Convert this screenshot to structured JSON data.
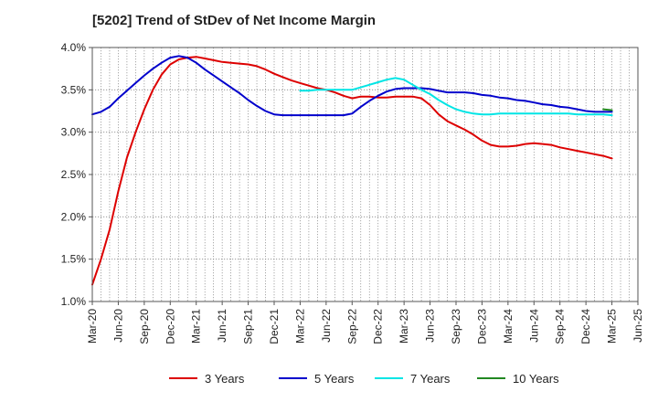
{
  "chart_data": {
    "type": "line",
    "title": "[5202]  Trend of StDev of Net Income Margin",
    "xlabel": "",
    "ylabel": "",
    "x_ticks": [
      "Mar-20",
      "Jun-20",
      "Sep-20",
      "Dec-20",
      "Mar-21",
      "Jun-21",
      "Sep-21",
      "Dec-21",
      "Mar-22",
      "Jun-22",
      "Sep-22",
      "Dec-22",
      "Mar-23",
      "Jun-23",
      "Sep-23",
      "Dec-23",
      "Mar-24",
      "Jun-24",
      "Sep-24",
      "Dec-24",
      "Mar-25",
      "Jun-25"
    ],
    "y_ticks": [
      "1.0%",
      "1.5%",
      "2.0%",
      "2.5%",
      "3.0%",
      "3.5%",
      "4.0%"
    ],
    "ylim": [
      1.0,
      4.0
    ],
    "y_unit": "%",
    "grid": true,
    "grid_style": "dotted",
    "legend_position": "bottom",
    "series": [
      {
        "name": "3 Years",
        "color": "#dd0000",
        "x": [
          "Mar-20",
          "Apr-20",
          "May-20",
          "Jun-20",
          "Jul-20",
          "Aug-20",
          "Sep-20",
          "Oct-20",
          "Nov-20",
          "Dec-20",
          "Jan-21",
          "Feb-21",
          "Mar-21",
          "Apr-21",
          "May-21",
          "Jun-21",
          "Jul-21",
          "Aug-21",
          "Sep-21",
          "Oct-21",
          "Nov-21",
          "Dec-21",
          "Jan-22",
          "Feb-22",
          "Mar-22",
          "Apr-22",
          "May-22",
          "Jun-22",
          "Jul-22",
          "Aug-22",
          "Sep-22",
          "Oct-22",
          "Nov-22",
          "Dec-22",
          "Jan-23",
          "Feb-23",
          "Mar-23",
          "Apr-23",
          "May-23",
          "Jun-23",
          "Jul-23",
          "Aug-23",
          "Sep-23",
          "Oct-23",
          "Nov-23",
          "Dec-23",
          "Jan-24",
          "Feb-24",
          "Mar-24",
          "Apr-24",
          "May-24",
          "Jun-24",
          "Jul-24",
          "Aug-24",
          "Sep-24",
          "Oct-24",
          "Nov-24",
          "Dec-24",
          "Jan-25",
          "Feb-25",
          "Mar-25"
        ],
        "values": [
          1.2,
          1.5,
          1.85,
          2.3,
          2.7,
          3.0,
          3.27,
          3.5,
          3.68,
          3.8,
          3.86,
          3.88,
          3.89,
          3.87,
          3.85,
          3.83,
          3.82,
          3.81,
          3.8,
          3.78,
          3.74,
          3.69,
          3.65,
          3.61,
          3.58,
          3.55,
          3.52,
          3.5,
          3.47,
          3.43,
          3.4,
          3.42,
          3.42,
          3.41,
          3.41,
          3.42,
          3.42,
          3.42,
          3.4,
          3.32,
          3.21,
          3.13,
          3.08,
          3.03,
          2.97,
          2.9,
          2.85,
          2.83,
          2.83,
          2.84,
          2.86,
          2.87,
          2.86,
          2.85,
          2.82,
          2.8,
          2.78,
          2.76,
          2.74,
          2.72,
          2.69
        ]
      },
      {
        "name": "5 Years",
        "color": "#0000cc",
        "x": [
          "Mar-20",
          "Apr-20",
          "May-20",
          "Jun-20",
          "Jul-20",
          "Aug-20",
          "Sep-20",
          "Oct-20",
          "Nov-20",
          "Dec-20",
          "Jan-21",
          "Feb-21",
          "Mar-21",
          "Apr-21",
          "May-21",
          "Jun-21",
          "Jul-21",
          "Aug-21",
          "Sep-21",
          "Oct-21",
          "Nov-21",
          "Dec-21",
          "Jan-22",
          "Feb-22",
          "Mar-22",
          "Apr-22",
          "May-22",
          "Jun-22",
          "Jul-22",
          "Aug-22",
          "Sep-22",
          "Oct-22",
          "Nov-22",
          "Dec-22",
          "Jan-23",
          "Feb-23",
          "Mar-23",
          "Apr-23",
          "May-23",
          "Jun-23",
          "Jul-23",
          "Aug-23",
          "Sep-23",
          "Oct-23",
          "Nov-23",
          "Dec-23",
          "Jan-24",
          "Feb-24",
          "Mar-24",
          "Apr-24",
          "May-24",
          "Jun-24",
          "Jul-24",
          "Aug-24",
          "Sep-24",
          "Oct-24",
          "Nov-24",
          "Dec-24",
          "Jan-25",
          "Feb-25",
          "Mar-25"
        ],
        "values": [
          3.21,
          3.24,
          3.3,
          3.4,
          3.49,
          3.58,
          3.67,
          3.75,
          3.82,
          3.88,
          3.9,
          3.88,
          3.82,
          3.74,
          3.67,
          3.6,
          3.53,
          3.46,
          3.38,
          3.31,
          3.25,
          3.21,
          3.2,
          3.2,
          3.2,
          3.2,
          3.2,
          3.2,
          3.2,
          3.2,
          3.22,
          3.3,
          3.37,
          3.43,
          3.48,
          3.51,
          3.52,
          3.52,
          3.52,
          3.51,
          3.49,
          3.47,
          3.47,
          3.47,
          3.46,
          3.44,
          3.43,
          3.41,
          3.4,
          3.38,
          3.37,
          3.35,
          3.33,
          3.32,
          3.3,
          3.29,
          3.27,
          3.25,
          3.24,
          3.24,
          3.24
        ]
      },
      {
        "name": "7 Years",
        "color": "#00e5e5",
        "x": [
          "Mar-22",
          "Apr-22",
          "May-22",
          "Jun-22",
          "Jul-22",
          "Aug-22",
          "Sep-22",
          "Oct-22",
          "Nov-22",
          "Dec-22",
          "Jan-23",
          "Feb-23",
          "Mar-23",
          "Apr-23",
          "May-23",
          "Jun-23",
          "Jul-23",
          "Aug-23",
          "Sep-23",
          "Oct-23",
          "Nov-23",
          "Dec-23",
          "Jan-24",
          "Feb-24",
          "Mar-24",
          "Apr-24",
          "May-24",
          "Jun-24",
          "Jul-24",
          "Aug-24",
          "Sep-24",
          "Oct-24",
          "Nov-24",
          "Dec-24",
          "Jan-25",
          "Feb-25",
          "Mar-25"
        ],
        "values": [
          3.49,
          3.49,
          3.5,
          3.5,
          3.5,
          3.5,
          3.5,
          3.53,
          3.56,
          3.59,
          3.62,
          3.64,
          3.62,
          3.56,
          3.5,
          3.45,
          3.38,
          3.32,
          3.27,
          3.24,
          3.22,
          3.21,
          3.21,
          3.22,
          3.22,
          3.22,
          3.22,
          3.22,
          3.22,
          3.22,
          3.22,
          3.22,
          3.21,
          3.21,
          3.21,
          3.21,
          3.2
        ]
      },
      {
        "name": "10 Years",
        "color": "#228822",
        "x": [
          "Feb-25",
          "Mar-25"
        ],
        "values": [
          3.27,
          3.26
        ]
      }
    ]
  }
}
